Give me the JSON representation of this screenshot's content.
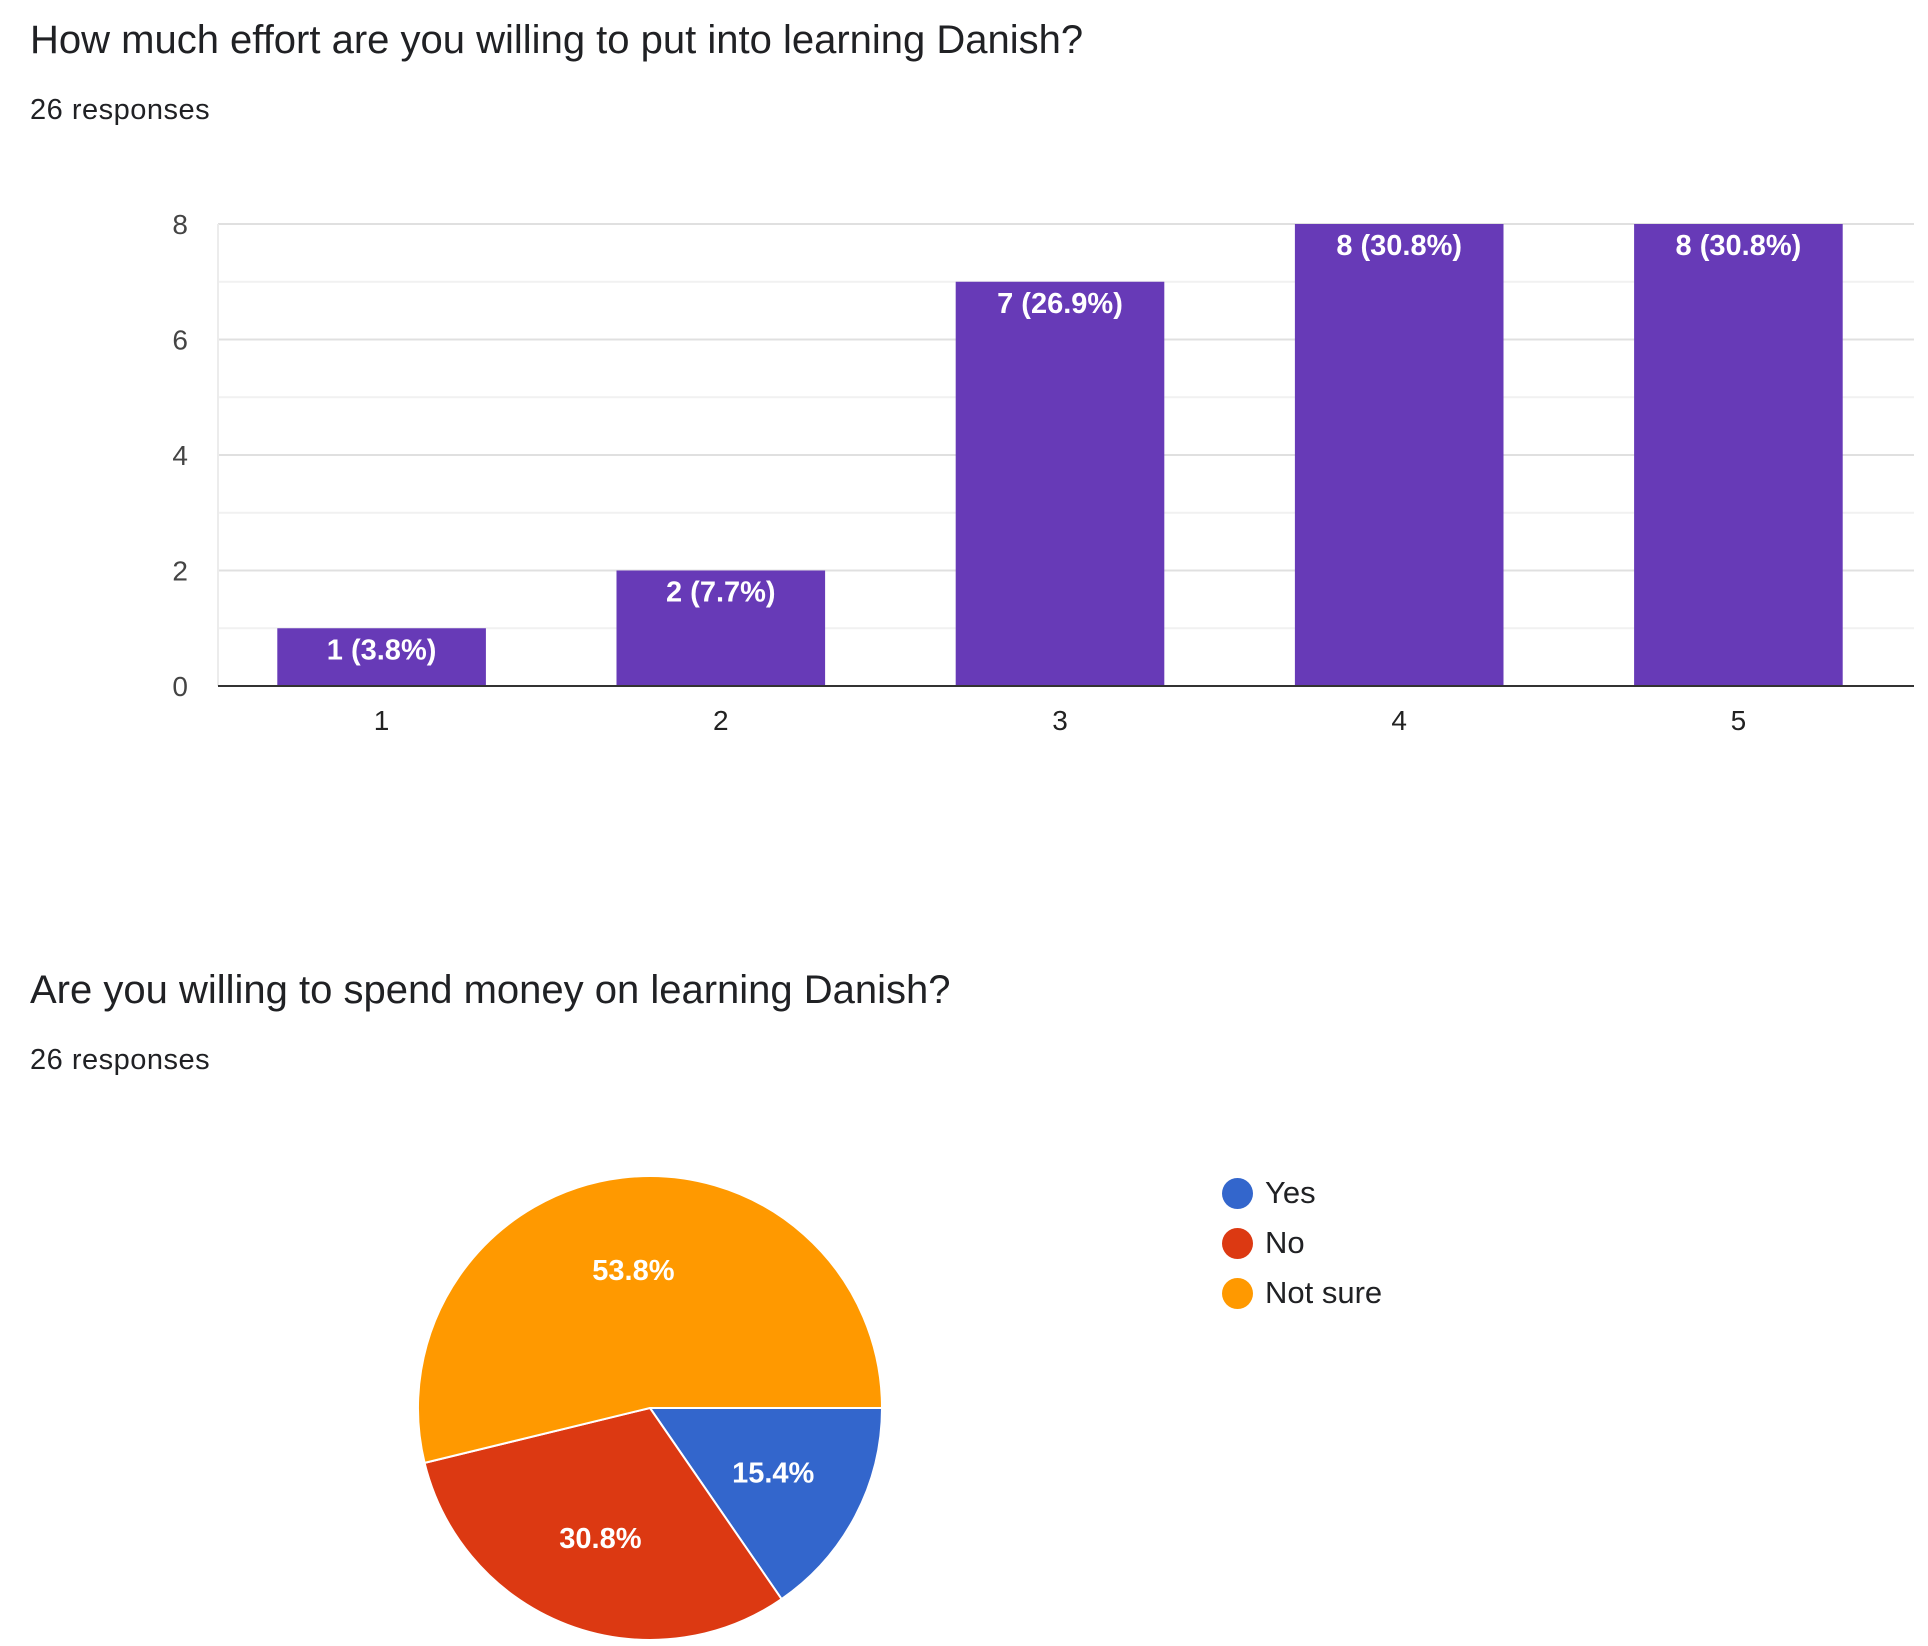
{
  "questions": [
    {
      "title": "How much effort are you willing to put into learning Danish?",
      "responses": "26 responses"
    },
    {
      "title": "Are you willing to spend money on learning Danish?",
      "responses": "26 responses"
    }
  ],
  "chart_data": [
    {
      "type": "bar",
      "categories": [
        "1",
        "2",
        "3",
        "4",
        "5"
      ],
      "values": [
        1,
        2,
        7,
        8,
        8
      ],
      "data_labels": [
        "1 (3.8%)",
        "2 (7.7%)",
        "7 (26.9%)",
        "8 (30.8%)",
        "8 (30.8%)"
      ],
      "ylim": [
        0,
        8
      ],
      "yticks": [
        "0",
        "2",
        "4",
        "6",
        "8"
      ],
      "grid": true,
      "color": "#673ab7"
    },
    {
      "type": "pie",
      "labels": [
        "Yes",
        "No",
        "Not sure"
      ],
      "values": [
        15.4,
        30.8,
        53.8
      ],
      "data_labels": [
        "15.4%",
        "30.8%",
        "53.8%"
      ],
      "colors": [
        "#3366cc",
        "#dc3912",
        "#ff9900"
      ],
      "legend": "right"
    }
  ]
}
